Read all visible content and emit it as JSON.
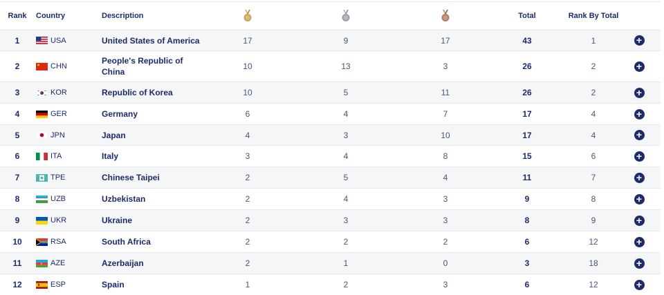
{
  "header": {
    "rank": "Rank",
    "country": "Country",
    "description": "Description",
    "gold_icon": "gold-medal-icon",
    "silver_icon": "silver-medal-icon",
    "bronze_icon": "bronze-medal-icon",
    "total": "Total",
    "rank_by_total": "Rank By Total"
  },
  "colors": {
    "text": "#1d2b6b",
    "stripe": "#f5f6f8",
    "gold": "#c5a25a",
    "silver": "#9aa0a8",
    "bronze": "#b07a5e",
    "button": "#1d2b6b"
  },
  "action_icon": "plus-circle-icon",
  "rows": [
    {
      "rank": "1",
      "code": "USA",
      "description": "United States of America",
      "gold": "17",
      "silver": "9",
      "bronze": "17",
      "total": "43",
      "rank_by_total": "1"
    },
    {
      "rank": "2",
      "code": "CHN",
      "description": "People's Republic of China",
      "gold": "10",
      "silver": "13",
      "bronze": "3",
      "total": "26",
      "rank_by_total": "2"
    },
    {
      "rank": "3",
      "code": "KOR",
      "description": "Republic of Korea",
      "gold": "10",
      "silver": "5",
      "bronze": "11",
      "total": "26",
      "rank_by_total": "2"
    },
    {
      "rank": "4",
      "code": "GER",
      "description": "Germany",
      "gold": "6",
      "silver": "4",
      "bronze": "7",
      "total": "17",
      "rank_by_total": "4"
    },
    {
      "rank": "5",
      "code": "JPN",
      "description": "Japan",
      "gold": "4",
      "silver": "3",
      "bronze": "10",
      "total": "17",
      "rank_by_total": "4"
    },
    {
      "rank": "6",
      "code": "ITA",
      "description": "Italy",
      "gold": "3",
      "silver": "4",
      "bronze": "8",
      "total": "15",
      "rank_by_total": "6"
    },
    {
      "rank": "7",
      "code": "TPE",
      "description": "Chinese Taipei",
      "gold": "2",
      "silver": "5",
      "bronze": "4",
      "total": "11",
      "rank_by_total": "7"
    },
    {
      "rank": "8",
      "code": "UZB",
      "description": "Uzbekistan",
      "gold": "2",
      "silver": "4",
      "bronze": "3",
      "total": "9",
      "rank_by_total": "8"
    },
    {
      "rank": "9",
      "code": "UKR",
      "description": "Ukraine",
      "gold": "2",
      "silver": "3",
      "bronze": "3",
      "total": "8",
      "rank_by_total": "9"
    },
    {
      "rank": "10",
      "code": "RSA",
      "description": "South Africa",
      "gold": "2",
      "silver": "2",
      "bronze": "2",
      "total": "6",
      "rank_by_total": "12"
    },
    {
      "rank": "11",
      "code": "AZE",
      "description": "Azerbaijan",
      "gold": "2",
      "silver": "1",
      "bronze": "0",
      "total": "3",
      "rank_by_total": "18"
    },
    {
      "rank": "12",
      "code": "ESP",
      "description": "Spain",
      "gold": "1",
      "silver": "2",
      "bronze": "3",
      "total": "6",
      "rank_by_total": "12"
    }
  ]
}
